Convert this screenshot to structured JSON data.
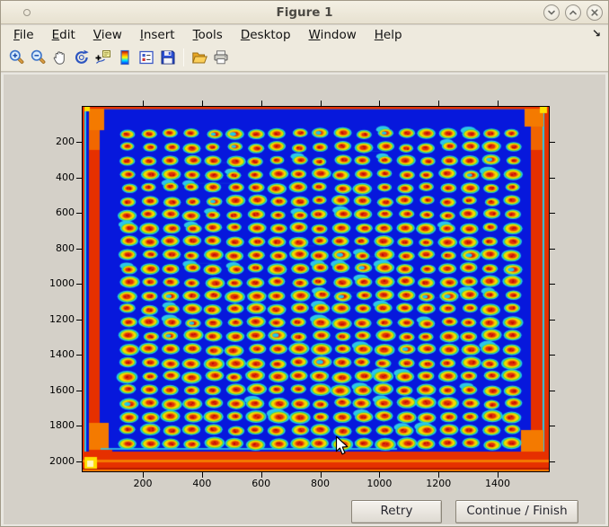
{
  "window": {
    "title": "Figure 1",
    "controls": [
      {
        "name": "minimize",
        "glyph": "chevron-down"
      },
      {
        "name": "maximize",
        "glyph": "chevron-up"
      },
      {
        "name": "close",
        "glyph": "x"
      }
    ]
  },
  "menu": {
    "items": [
      {
        "label": "File"
      },
      {
        "label": "Edit"
      },
      {
        "label": "View"
      },
      {
        "label": "Insert"
      },
      {
        "label": "Tools"
      },
      {
        "label": "Desktop"
      },
      {
        "label": "Window"
      },
      {
        "label": "Help"
      }
    ],
    "dock_arrow": "↘"
  },
  "toolbar": {
    "icons": [
      "zoom-in",
      "zoom-out",
      "pan",
      "rotate-3d",
      "data-cursor",
      "colorbar",
      "insert-legend",
      "save",
      "separator",
      "open-file",
      "print"
    ]
  },
  "plot": {
    "type": "image",
    "description": "Microarray plate scan rendered with jet colormap: grid of red/yellow spots with cyan halos on blue background, red saturated edges",
    "x_ticks": [
      200,
      400,
      600,
      800,
      1000,
      1200,
      1400
    ],
    "y_ticks": [
      200,
      400,
      600,
      800,
      1000,
      1200,
      1400,
      1600,
      1800,
      2000
    ],
    "grid": {
      "rows": 24,
      "cols": 19
    },
    "colors": {
      "background": "#0718dc",
      "spot_halo": "#1ec8ea",
      "spot_green": "#5fd92a",
      "spot_ring": "#f2da00",
      "spot_orange": "#f58a00",
      "spot_core": "#e03008",
      "spot_speckle": "#bd0a06",
      "edge_red": "#e63000",
      "edge_orange": "#f47a00",
      "edge_yellow": "#ffe000",
      "edge_cyan": "#2ec8e6"
    }
  },
  "actions": {
    "retry": "Retry",
    "continue_finish": "Continue / Finish"
  },
  "theme": {
    "titlebar_bg": "#f0ecdf",
    "menubar_bg": "#eeeade",
    "figure_bg": "#d4d0c8",
    "axes_border": "#000000"
  }
}
